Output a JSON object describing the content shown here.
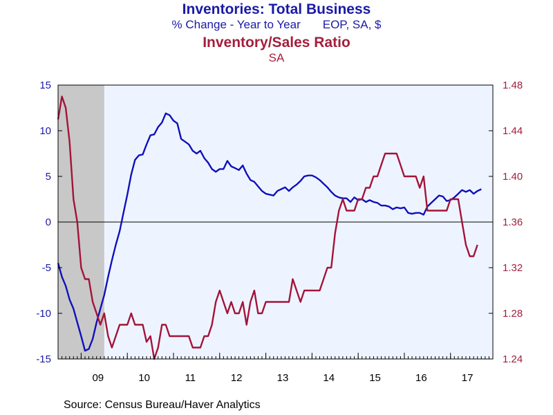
{
  "chart_data": {
    "type": "line",
    "title": "Inventories: Total Business",
    "subtitle_left": "% Change - Year to Year",
    "subtitle_right": "EOP, SA, $",
    "title2": "Inventory/Sales Ratio",
    "subtitle2": "SA",
    "source": "Source:  Census Bureau/Haver Analytics",
    "x_tick_labels": [
      "09",
      "10",
      "11",
      "12",
      "13",
      "14",
      "15",
      "16",
      "17"
    ],
    "x_range": [
      2008.5,
      2017.917
    ],
    "y_left": {
      "range": [
        -15,
        15
      ],
      "ticks": [
        15,
        10,
        5,
        0,
        -5,
        -10,
        -15
      ]
    },
    "y_right": {
      "range": [
        1.24,
        1.48
      ],
      "ticks": [
        "1.48",
        "1.44",
        "1.40",
        "1.36",
        "1.32",
        "1.28",
        "1.24"
      ]
    },
    "recession_shading": [
      2008.5,
      2009.5
    ],
    "grid": false,
    "colors": {
      "series1": "#1010bb",
      "series2": "#a3133a",
      "left_axis": "#1a1aa6",
      "right_axis": "#a31f3c",
      "plot_bg": "#eef4ff",
      "recession": "#c8c8c8"
    },
    "series": [
      {
        "name": "Inventories: Total Business",
        "axis": "left",
        "x_start": 2008.5,
        "x_step": 0.08333,
        "values": [
          -4.5,
          -6,
          -7,
          -8.5,
          -9.5,
          -11,
          -12.5,
          -14.1,
          -13.9,
          -12.8,
          -11,
          -9.5,
          -8,
          -6,
          -4.2,
          -2.5,
          -1,
          1,
          3,
          5.2,
          6.8,
          7.3,
          7.4,
          8.5,
          9.5,
          9.6,
          10.4,
          10.9,
          11.9,
          11.7,
          11.1,
          10.8,
          9.1,
          8.8,
          8.5,
          7.8,
          7.5,
          7.8,
          7,
          6.5,
          5.8,
          5.5,
          5.8,
          5.8,
          6.7,
          6.1,
          5.9,
          5.7,
          6.2,
          5.3,
          4.6,
          4.4,
          3.9,
          3.4,
          3.1,
          3,
          2.9,
          3.4,
          3.6,
          3.8,
          3.4,
          3.8,
          4.1,
          4.5,
          5,
          5.1,
          5.1,
          4.9,
          4.6,
          4.2,
          3.8,
          3.3,
          2.9,
          2.7,
          2.6,
          2.6,
          2.2,
          2.7,
          2.4,
          2.5,
          2.2,
          2.4,
          2.2,
          2.1,
          1.8,
          1.8,
          1.7,
          1.4,
          1.6,
          1.5,
          1.6,
          1,
          0.9,
          1,
          1,
          0.8,
          1.7,
          2.1,
          2.5,
          2.9,
          2.8,
          2.3,
          2.4,
          2.7,
          3.1,
          3.5,
          3.3,
          3.5,
          3.1,
          3.4,
          3.6
        ]
      },
      {
        "name": "Inventory/Sales Ratio",
        "axis": "right",
        "x_start": 2008.5,
        "x_step": 0.08333,
        "values": [
          1.45,
          1.47,
          1.46,
          1.43,
          1.38,
          1.36,
          1.32,
          1.31,
          1.31,
          1.29,
          1.28,
          1.27,
          1.28,
          1.26,
          1.25,
          1.26,
          1.27,
          1.27,
          1.27,
          1.28,
          1.27,
          1.27,
          1.27,
          1.255,
          1.26,
          1.24,
          1.25,
          1.27,
          1.27,
          1.26,
          1.26,
          1.26,
          1.26,
          1.26,
          1.26,
          1.25,
          1.25,
          1.25,
          1.26,
          1.26,
          1.27,
          1.29,
          1.3,
          1.29,
          1.28,
          1.29,
          1.28,
          1.28,
          1.29,
          1.27,
          1.29,
          1.3,
          1.28,
          1.28,
          1.29,
          1.29,
          1.29,
          1.29,
          1.29,
          1.29,
          1.29,
          1.31,
          1.3,
          1.29,
          1.3,
          1.3,
          1.3,
          1.3,
          1.3,
          1.31,
          1.32,
          1.32,
          1.35,
          1.37,
          1.38,
          1.37,
          1.37,
          1.37,
          1.38,
          1.38,
          1.39,
          1.39,
          1.4,
          1.4,
          1.41,
          1.42,
          1.42,
          1.42,
          1.42,
          1.41,
          1.4,
          1.4,
          1.4,
          1.4,
          1.39,
          1.4,
          1.37,
          1.37,
          1.37,
          1.37,
          1.37,
          1.37,
          1.38,
          1.38,
          1.38,
          1.36,
          1.34,
          1.33,
          1.33,
          1.34
        ]
      }
    ]
  }
}
